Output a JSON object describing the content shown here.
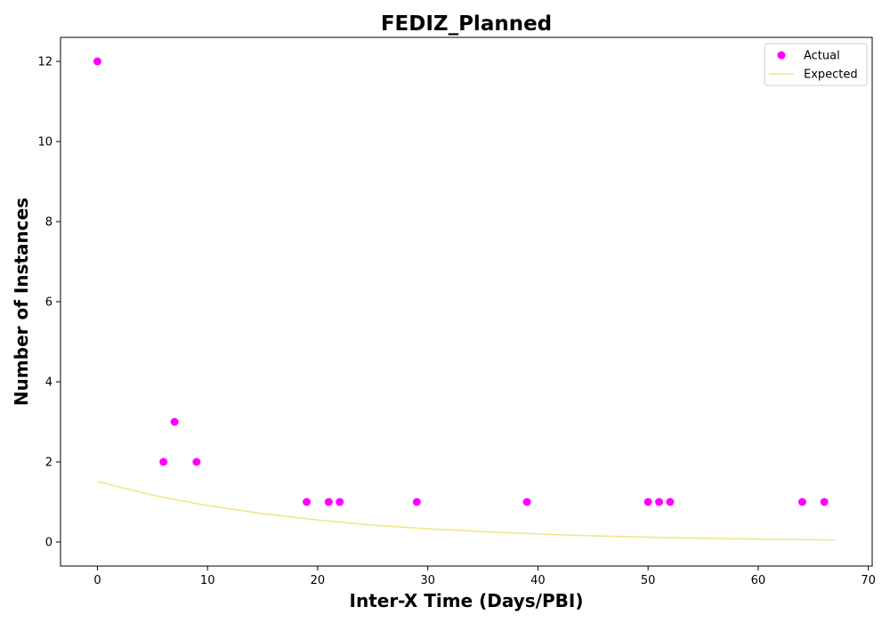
{
  "chart_data": {
    "type": "scatter",
    "title": "FEDIZ_Planned",
    "xlabel": "Inter-X Time (Days/PBI)",
    "ylabel": "Number of Instances",
    "xlim": [
      -3.35,
      70.35
    ],
    "ylim": [
      -0.6,
      12.6
    ],
    "xticks": [
      0,
      10,
      20,
      30,
      40,
      50,
      60,
      70
    ],
    "yticks": [
      0,
      2,
      4,
      6,
      8,
      10,
      12
    ],
    "grid": false,
    "legend_position": "top-right",
    "series": [
      {
        "name": "Actual",
        "kind": "scatter",
        "color": "#ff00ff",
        "x": [
          0,
          6,
          7,
          9,
          19,
          21,
          22,
          29,
          39,
          50,
          51,
          52,
          64,
          66
        ],
        "y": [
          12,
          2,
          3,
          2,
          1,
          1,
          1,
          1,
          1,
          1,
          1,
          1,
          1,
          1
        ]
      },
      {
        "name": "Expected",
        "kind": "line",
        "color": "#f0e68c",
        "x": [
          0,
          5,
          10,
          15,
          20,
          25,
          30,
          35,
          40,
          45,
          50,
          55,
          60,
          65,
          67
        ],
        "y": [
          1.51,
          1.17,
          0.91,
          0.71,
          0.55,
          0.42,
          0.33,
          0.26,
          0.2,
          0.155,
          0.12,
          0.093,
          0.072,
          0.056,
          0.05
        ]
      }
    ]
  }
}
